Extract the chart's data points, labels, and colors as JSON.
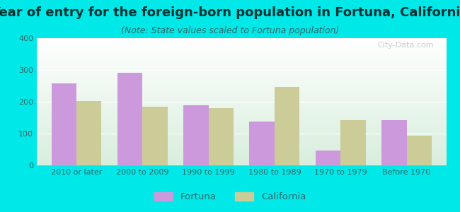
{
  "title": "Year of entry for the foreign-born population in Fortuna, California",
  "subtitle": "(Note: State values scaled to Fortuna population)",
  "categories": [
    "2010 or later",
    "2000 to 2009",
    "1990 to 1999",
    "1980 to 1989",
    "1970 to 1979",
    "Before 1970"
  ],
  "fortuna_values": [
    258,
    291,
    189,
    138,
    47,
    143
  ],
  "california_values": [
    203,
    184,
    181,
    247,
    143,
    93
  ],
  "fortuna_color": "#cc99dd",
  "california_color": "#cccc99",
  "background_outer": "#00e8e8",
  "background_inner_top": "#ffffff",
  "background_inner_bottom": "#d8eedd",
  "ylim": [
    0,
    400
  ],
  "yticks": [
    0,
    100,
    200,
    300,
    400
  ],
  "bar_width": 0.38,
  "title_fontsize": 13,
  "subtitle_fontsize": 9,
  "title_color": "#003333",
  "subtitle_color": "#336666",
  "tick_label_color": "#336666",
  "legend_labels": [
    "Fortuna",
    "California"
  ],
  "watermark": "City-Data.com"
}
